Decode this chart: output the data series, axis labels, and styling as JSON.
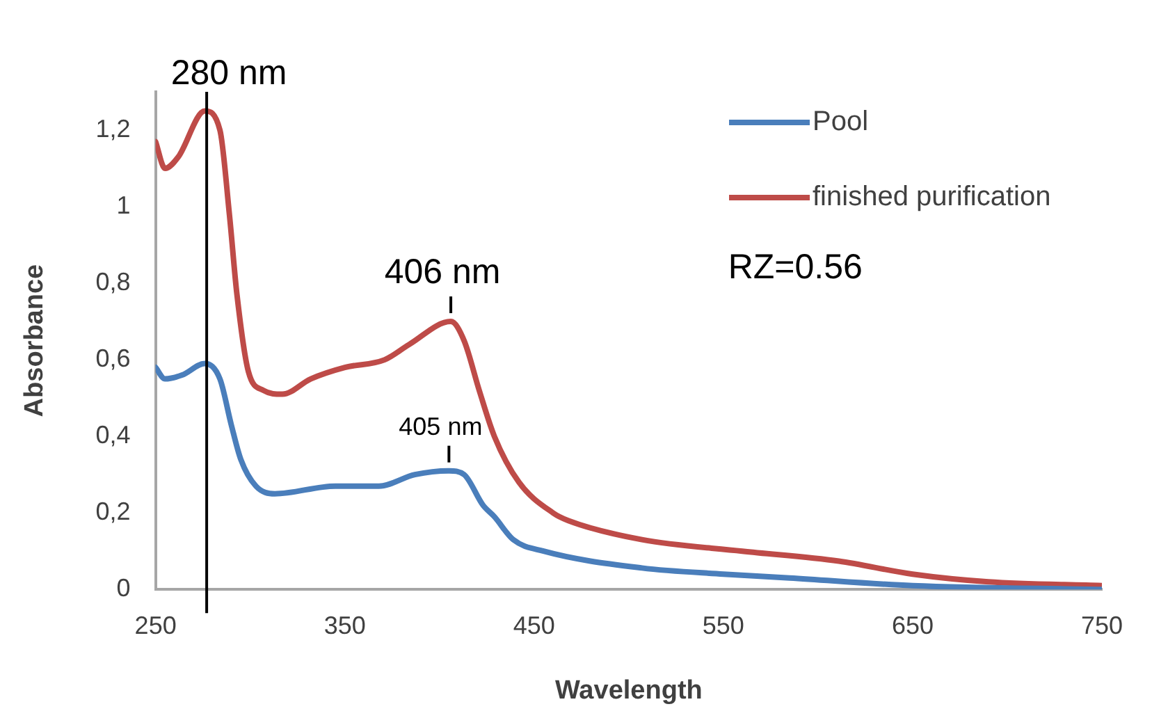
{
  "chart_data": {
    "type": "line",
    "xlabel": "Wavelength",
    "ylabel": "Absorbance",
    "xlim": [
      250,
      750
    ],
    "xticks": [
      250,
      350,
      450,
      550,
      650,
      750
    ],
    "ylim": [
      0,
      1.3
    ],
    "yticks": [
      0,
      {
        "value": 0.2,
        "label": "0,2"
      },
      {
        "value": 0.4,
        "label": "0,4"
      },
      {
        "value": 0.6,
        "label": "0,6"
      },
      {
        "value": 0.8,
        "label": "0,8"
      },
      1,
      {
        "value": 1.2,
        "label": "1,2"
      }
    ],
    "grid": false,
    "legend": "top right",
    "marker": "none",
    "line_style": "solid",
    "series": [
      {
        "name": "Pool",
        "color": "#4a7ebb",
        "x": [
          250,
          255,
          264,
          276,
          284,
          290,
          295,
          303,
          313,
          345,
          368,
          387,
          405,
          413,
          423,
          429,
          439,
          455,
          507,
          550,
          585,
          650,
          750
        ],
        "values": [
          0.58,
          0.55,
          0.56,
          0.59,
          0.55,
          0.43,
          0.34,
          0.27,
          0.25,
          0.27,
          0.27,
          0.3,
          0.31,
          0.3,
          0.22,
          0.19,
          0.13,
          0.1,
          0.056,
          0.04,
          0.03,
          0.01,
          0.0
        ]
      },
      {
        "name": "finished purification",
        "color": "#be4b48",
        "x": [
          250,
          255,
          262,
          276,
          284,
          289,
          293,
          299,
          307,
          317,
          332,
          350,
          371,
          384,
          406,
          413,
          421,
          429,
          442,
          460,
          468,
          507,
          560,
          611,
          650,
          690,
          750
        ],
        "values": [
          1.17,
          1.1,
          1.13,
          1.25,
          1.2,
          0.98,
          0.77,
          0.57,
          0.52,
          0.51,
          0.55,
          0.58,
          0.6,
          0.64,
          0.7,
          0.65,
          0.52,
          0.4,
          0.28,
          0.2,
          0.18,
          0.13,
          0.1,
          0.074,
          0.04,
          0.02,
          0.01
        ]
      }
    ],
    "ref_lines": [
      {
        "axis": "x",
        "value": 277,
        "label": "280 nm",
        "color": "#000000"
      }
    ],
    "annotations": [
      {
        "text": "406 nm",
        "x": 406,
        "y": 0.7
      },
      {
        "text": "405 nm",
        "x": 405,
        "y": 0.31
      },
      "RZ=0.56"
    ]
  }
}
